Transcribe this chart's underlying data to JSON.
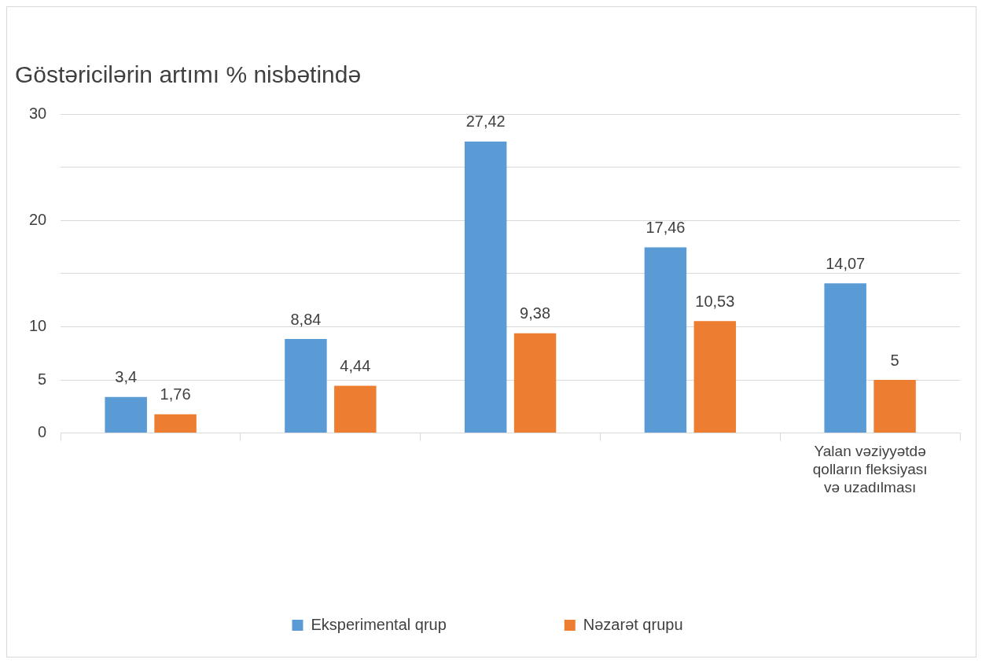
{
  "chart_data": {
    "type": "bar",
    "title": "Göstəricilərin artımı % nisbətində",
    "categories": [
      null,
      null,
      null,
      null,
      "Yalan vəziyyətdə qolların fleksiyası və uzadılması"
    ],
    "series": [
      {
        "name": "Eksperimental qrup",
        "color": "#5b9bd5",
        "values": [
          3.4,
          8.84,
          27.42,
          17.46,
          14.07
        ],
        "value_labels": [
          "3,4",
          "8,84",
          "27,42",
          "17,46",
          "14,07"
        ]
      },
      {
        "name": "Nəzarət qrupu",
        "color": "#ed7d31",
        "values": [
          1.76,
          4.44,
          9.38,
          10.53,
          5
        ],
        "value_labels": [
          "1,76",
          "4,44",
          "9,38",
          "10,53",
          "5"
        ]
      }
    ],
    "ylim": [
      0,
      30
    ],
    "yticks": [
      0,
      5,
      10,
      {
        "value": 15,
        "label": null
      },
      20,
      {
        "value": 25,
        "label": null
      },
      30
    ],
    "grid": "y",
    "legend": "bottom"
  }
}
